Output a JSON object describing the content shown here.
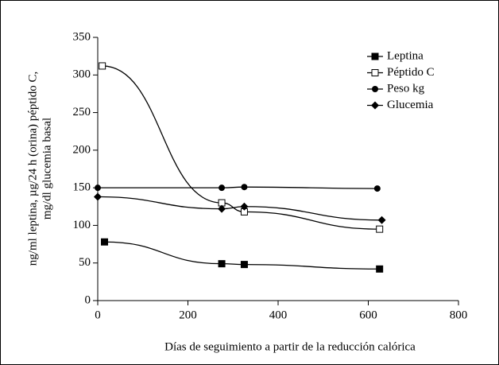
{
  "chart_data": {
    "type": "line",
    "xlabel": "Días de seguimiento a partir de la reducción calórica",
    "ylabel": [
      "ng/ml leptina, µg/24 h (orina) péptido C,",
      "mg/dl glucemia basal"
    ],
    "xlim": [
      0,
      800
    ],
    "xticks": [
      0,
      200,
      400,
      600,
      800
    ],
    "ylim": [
      0,
      350
    ],
    "yticks": [
      0,
      50,
      100,
      150,
      200,
      250,
      300,
      350
    ],
    "legend": "upper right",
    "series": [
      {
        "name": "Leptina",
        "color": "#000000",
        "marker": "square",
        "x": [
          15,
          275,
          325,
          625
        ],
        "values": [
          78,
          49,
          48,
          42
        ]
      },
      {
        "name": "Péptido C",
        "color": "#000000",
        "marker": "open-square",
        "x": [
          10,
          275,
          325,
          625
        ],
        "values": [
          312,
          130,
          118,
          95
        ]
      },
      {
        "name": "Peso kg",
        "color": "#000000",
        "marker": "circle",
        "x": [
          0,
          275,
          325,
          620
        ],
        "values": [
          150,
          150,
          151,
          149
        ]
      },
      {
        "name": "Glucemia",
        "color": "#000000",
        "marker": "diamond",
        "x": [
          0,
          275,
          325,
          630
        ],
        "values": [
          138,
          122,
          125,
          107
        ]
      }
    ]
  }
}
